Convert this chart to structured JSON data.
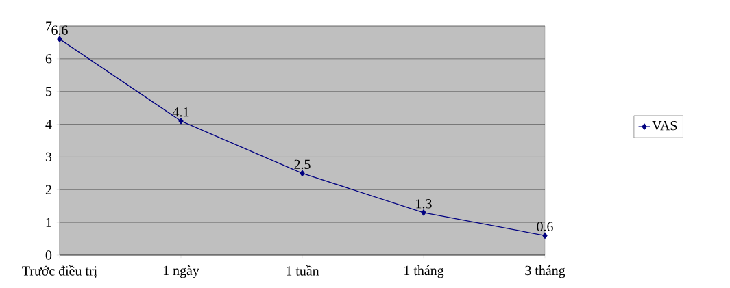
{
  "chart_data": {
    "type": "line",
    "categories": [
      "Trước điều trị",
      "1 ngày",
      "1 tuần",
      "1 tháng",
      "3 tháng"
    ],
    "series": [
      {
        "name": "VAS",
        "color": "#000080",
        "values": [
          6.6,
          4.1,
          2.5,
          1.3,
          0.6
        ]
      }
    ],
    "ylim": [
      0,
      7
    ],
    "yticks": [
      0,
      1,
      2,
      3,
      4,
      5,
      6,
      7
    ],
    "grid": "y",
    "legend": "right",
    "marker": "diamond",
    "line_style": "solid",
    "data_labels": true
  }
}
